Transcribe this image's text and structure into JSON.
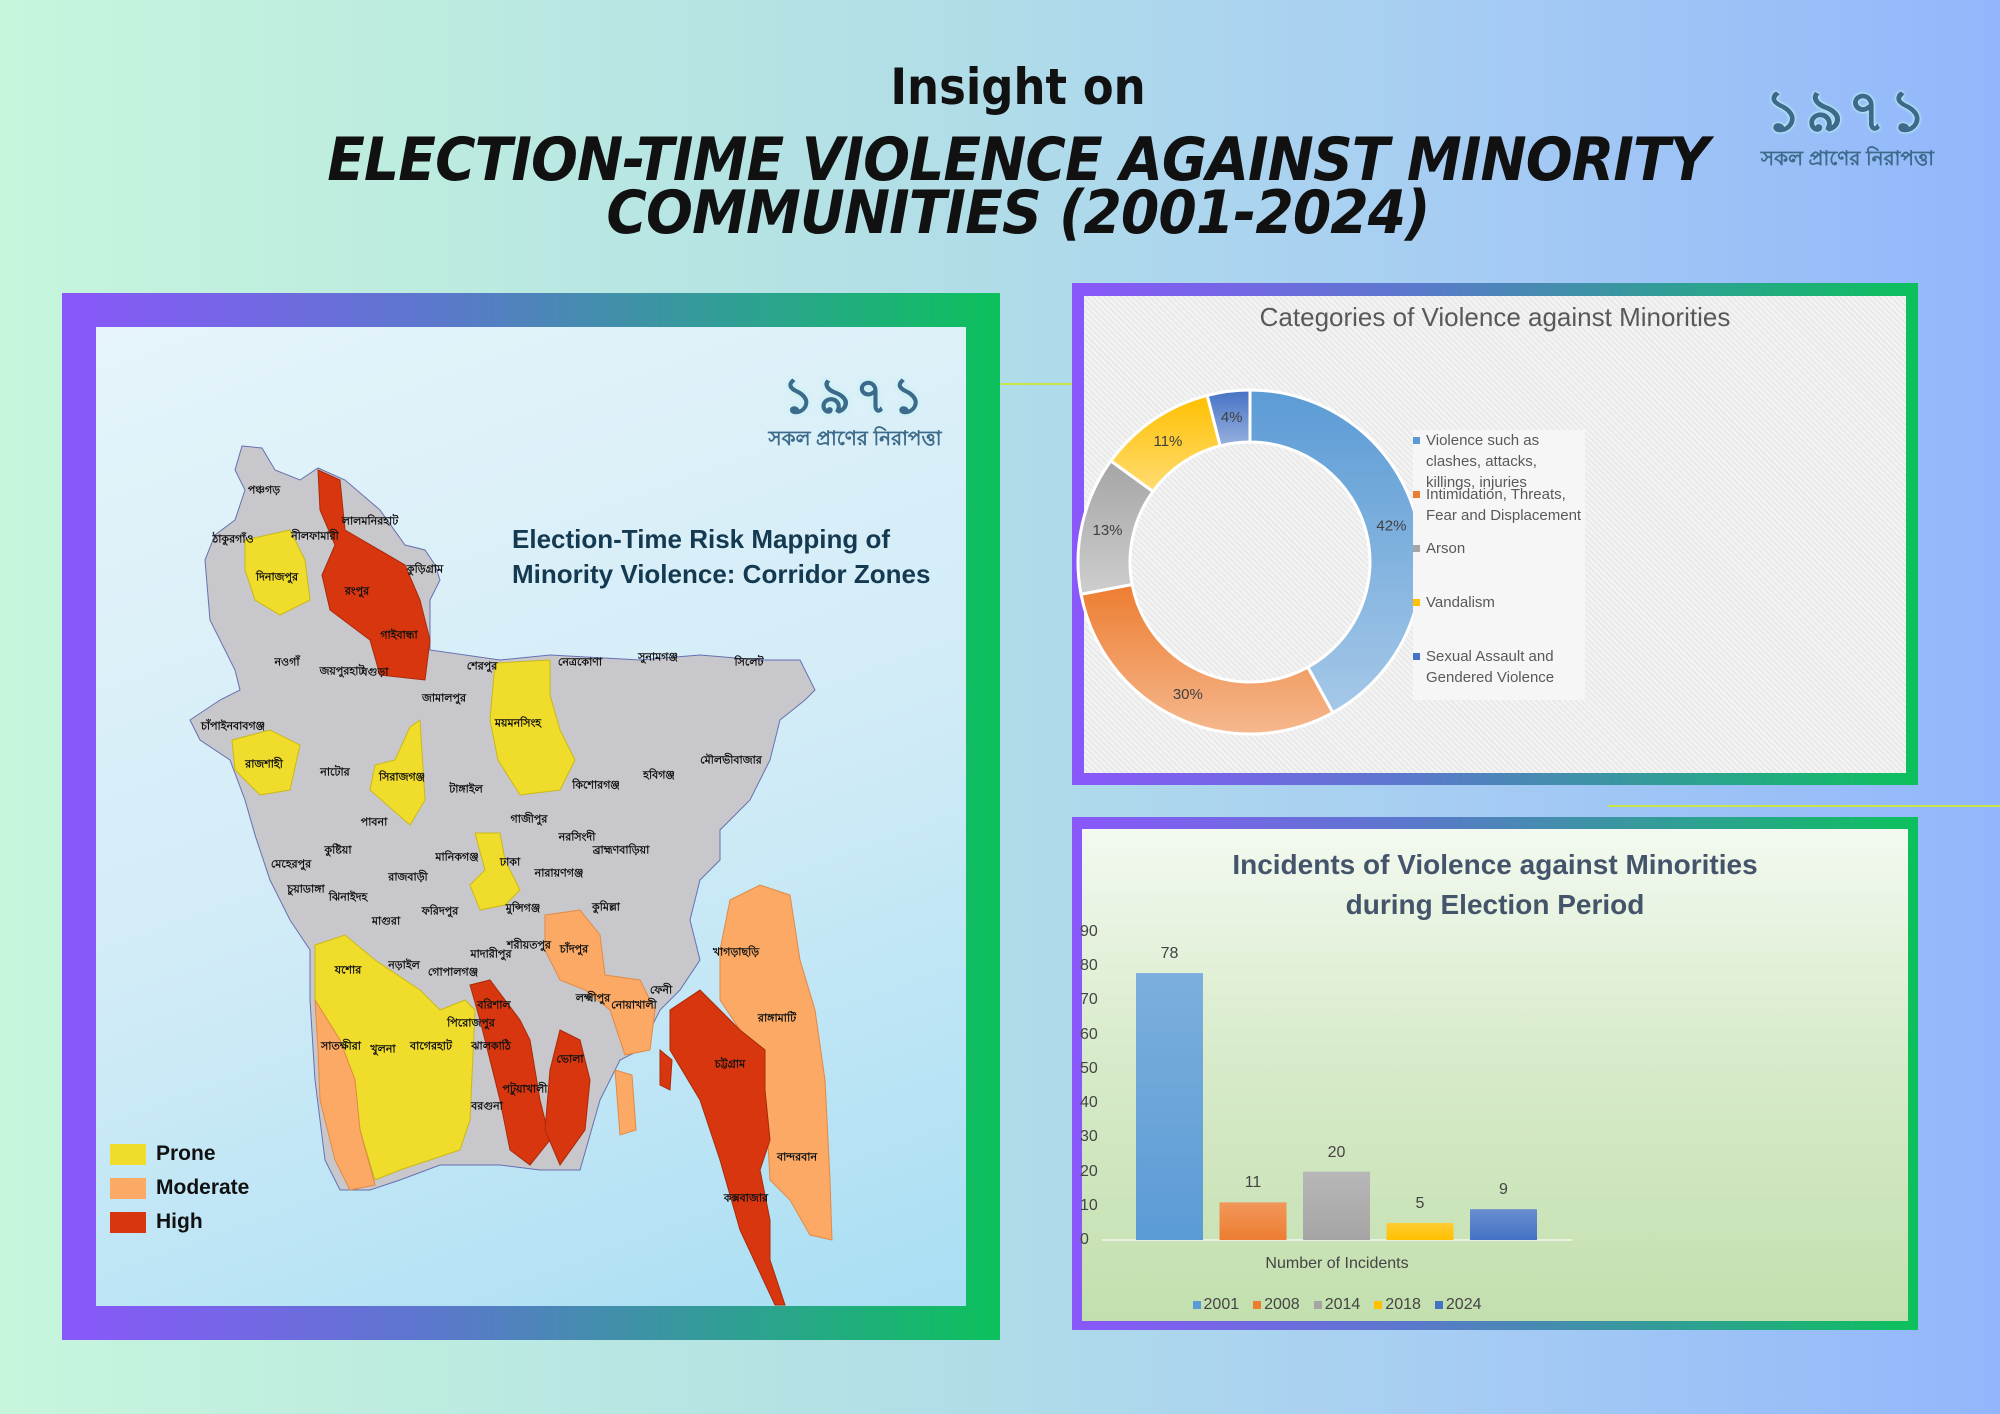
{
  "header": {
    "intro": "Insight on",
    "title_line1": "ELECTION-TIME VIOLENCE AGAINST MINORITY",
    "title_line2": "COMMUNITIES (2001-2024)"
  },
  "logo": {
    "mark": "১৯৭১",
    "tagline": "সকল প্রাণের নিরাপত্তা"
  },
  "map": {
    "title_line1": "Election-Time Risk Mapping of",
    "title_line2": "Minority Violence: Corridor Zones",
    "legend": [
      {
        "label": "Prone",
        "color": "#f0dc2a"
      },
      {
        "label": "Moderate",
        "color": "#fba964"
      },
      {
        "label": "High",
        "color": "#d8360e"
      }
    ],
    "districts": [
      "পঞ্চগড়",
      "ঠাকুরগাঁও",
      "নীলফামারী",
      "লালমনিরহাট",
      "দিনাজপুর",
      "কুড়িগ্রাম",
      "রংপুর",
      "গাইবান্ধা",
      "জয়পুরহাট",
      "শেরপুর",
      "নেত্রকোণা",
      "সুনামগঞ্জ",
      "সিলেট",
      "নওগাঁ",
      "বগুড়া",
      "জামালপুর",
      "চাঁপাইনবাবগঞ্জ",
      "ময়মনসিংহ",
      "রাজশাহী",
      "নাটোর",
      "সিরাজগঞ্জ",
      "টাঙ্গাইল",
      "কিশোরগঞ্জ",
      "হবিগঞ্জ",
      "মৌলভীবাজার",
      "পাবনা",
      "গাজীপুর",
      "নরসিংদী",
      "ব্রাহ্মণবাড়িয়া",
      "কুষ্টিয়া",
      "মানিকগঞ্জ",
      "ঢাকা",
      "মেহেরপুর",
      "রাজবাড়ী",
      "নারায়ণগঞ্জ",
      "চুয়াডাঙ্গা",
      "ঝিনাইদহ",
      "ফরিদপুর",
      "মুন্সিগঞ্জ",
      "কুমিল্লা",
      "মাগুরা",
      "চাঁদপুর",
      "খাগড়াছড়ি",
      "শরীয়তপুর",
      "মাদারীপুর",
      "যশোর",
      "নড়াইল",
      "গোপালগঞ্জ",
      "লক্ষ্মীপুর",
      "নোয়াখালী",
      "ফেনী",
      "বরিশাল",
      "রাঙ্গামাটি",
      "পিরোজপুর",
      "সাতক্ষীরা",
      "খুলনা",
      "বাগেরহাট",
      "ঝালকাঠি",
      "ভোলা",
      "চট্টগ্রাম",
      "পটুয়াখালী",
      "বরগুনা",
      "বান্দরবান",
      "কক্সবাজার"
    ]
  },
  "chart_data": [
    {
      "type": "pie",
      "subtype": "donut",
      "title": "Categories of Violence against Minorities",
      "categories": [
        "Violence such as clashes, attacks, killings, injuries",
        "Intimidation, Threats, Fear and Displacement",
        "Arson",
        "Vandalism",
        "Sexual Assault and Gendered Violence"
      ],
      "values": [
        42,
        30,
        13,
        11,
        4
      ],
      "labels": [
        "42%",
        "30%",
        "13%",
        "11%",
        "4%"
      ],
      "colors": [
        "#5b9bd5",
        "#ed7d31",
        "#a5a5a5",
        "#ffc000",
        "#4472c4"
      ],
      "legend": "right"
    },
    {
      "type": "bar",
      "title": "Incidents of Violence against Minorities during Election Period",
      "categories": [
        "2001",
        "2008",
        "2014",
        "2018",
        "2024"
      ],
      "values": [
        78,
        11,
        20,
        5,
        9
      ],
      "colors": [
        "#5b9bd5",
        "#ed7d31",
        "#a5a5a5",
        "#ffc000",
        "#4472c4"
      ],
      "xlabel": "Number of Incidents",
      "ylabel": "",
      "ylim": [
        0,
        90
      ],
      "yticks": [
        "0",
        "10",
        "20",
        "30",
        "40",
        "50",
        "60",
        "70",
        "80",
        "90"
      ],
      "legend": "bottom",
      "grid": false
    }
  ]
}
